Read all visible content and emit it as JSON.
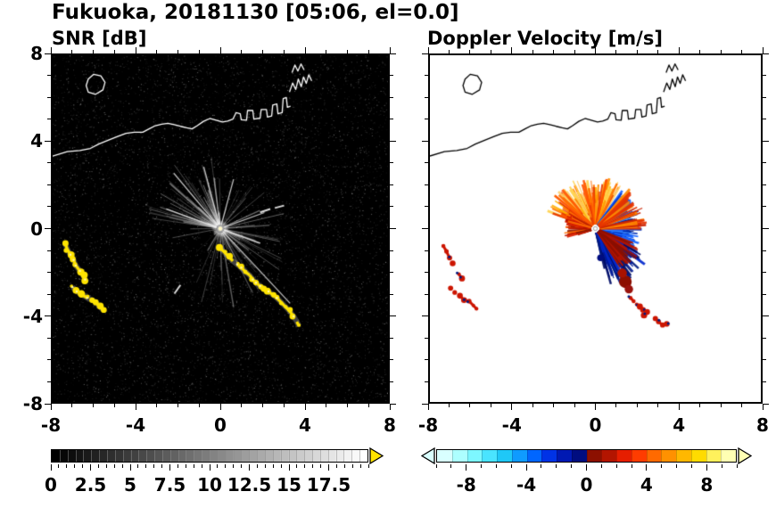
{
  "chart_data": {
    "type": "heatmap",
    "title": "Fukuoka, 20181130 [05:06, el=0.0]",
    "station": "Fukuoka",
    "date": "20181130",
    "time": "05:06",
    "elevation": "el=0.0",
    "panels": [
      {
        "label": "SNR [dB]",
        "background": "#000000",
        "units": "dB"
      },
      {
        "label": "Doppler Velocity [m/s]",
        "background": "#ffffff",
        "units": "m/s"
      }
    ],
    "axes": {
      "xlim": [
        -8,
        8
      ],
      "ylim": [
        -8,
        8
      ],
      "tick_values": [
        -8,
        -4,
        0,
        4,
        8
      ],
      "tick_labels": [
        "-8",
        "-4",
        "0",
        "4",
        "8"
      ],
      "minor_step": 1
    },
    "colorbars": [
      {
        "panel": "SNR [dB]",
        "min": 0,
        "max": 20,
        "tick_values": [
          0,
          2.5,
          5,
          7.5,
          10,
          12.5,
          15,
          17.5
        ],
        "tick_labels": [
          "0",
          "2.5",
          "5",
          "7.5",
          "10",
          "12.5",
          "15",
          "17.5"
        ],
        "minor_step": 0.5,
        "gradient_from": "#000000",
        "gradient_to": "#ffffff",
        "steps": 40,
        "over_arrow_color": "#ffe400"
      },
      {
        "panel": "Doppler Velocity [m/s]",
        "min": -10,
        "max": 10,
        "tick_values": [
          -8,
          -4,
          0,
          4,
          8
        ],
        "tick_labels": [
          "-8",
          "-4",
          "0",
          "4",
          "8"
        ],
        "minor_step": 1,
        "colors": [
          "#d9ffff",
          "#adffff",
          "#7df7ff",
          "#4ae4ff",
          "#1fc8f7",
          "#0f9bff",
          "#0066ff",
          "#0033e6",
          "#0019b3",
          "#000d80",
          "#8c1000",
          "#b31500",
          "#e61e00",
          "#ff3c00",
          "#ff6a00",
          "#ff9100",
          "#ffb800",
          "#ffdb00",
          "#fff15c",
          "#ffffb3"
        ],
        "under_arrow_color": "#d9ffff",
        "over_arrow_color": "#ffffb3"
      }
    ],
    "coastline": [
      {
        "closed": false,
        "pts": [
          [
            -8,
            3.35
          ],
          [
            -7.3,
            3.55
          ],
          [
            -6.7,
            3.6
          ],
          [
            -6.2,
            3.7
          ],
          [
            -5.8,
            3.9
          ],
          [
            -5.3,
            4.1
          ],
          [
            -4.9,
            4.25
          ],
          [
            -4.5,
            4.4
          ],
          [
            -4.1,
            4.45
          ],
          [
            -3.7,
            4.45
          ],
          [
            -3.4,
            4.6
          ],
          [
            -3.1,
            4.75
          ],
          [
            -2.8,
            4.82
          ],
          [
            -2.5,
            4.86
          ],
          [
            -2.2,
            4.8
          ],
          [
            -1.9,
            4.72
          ],
          [
            -1.6,
            4.65
          ],
          [
            -1.35,
            4.6
          ],
          [
            -1.1,
            4.75
          ],
          [
            -0.8,
            4.95
          ],
          [
            -0.5,
            5.08
          ],
          [
            -0.2,
            5.0
          ],
          [
            0.1,
            4.92
          ],
          [
            0.35,
            4.96
          ],
          [
            0.6,
            5.05
          ],
          [
            0.75,
            5.35
          ],
          [
            0.95,
            5.3
          ],
          [
            1.0,
            5.02
          ],
          [
            1.25,
            5.0
          ],
          [
            1.3,
            5.45
          ],
          [
            1.55,
            5.45
          ],
          [
            1.6,
            5.05
          ],
          [
            1.9,
            5.1
          ],
          [
            1.95,
            5.5
          ],
          [
            2.2,
            5.5
          ],
          [
            2.25,
            5.15
          ],
          [
            2.45,
            5.2
          ],
          [
            2.5,
            5.7
          ],
          [
            2.7,
            5.75
          ],
          [
            2.75,
            5.3
          ],
          [
            2.95,
            5.35
          ],
          [
            3.0,
            6.0
          ],
          [
            3.15,
            6.05
          ],
          [
            3.2,
            5.6
          ],
          [
            3.35,
            5.65
          ]
        ]
      },
      {
        "closed": true,
        "pts": [
          [
            -6.3,
            6.3
          ],
          [
            -5.95,
            6.2
          ],
          [
            -5.6,
            6.4
          ],
          [
            -5.5,
            6.75
          ],
          [
            -5.7,
            7.05
          ],
          [
            -6.05,
            7.12
          ],
          [
            -6.3,
            6.9
          ],
          [
            -6.4,
            6.6
          ]
        ]
      },
      {
        "closed": false,
        "pts": [
          [
            3.3,
            6.3
          ],
          [
            3.45,
            6.72
          ],
          [
            3.6,
            6.42
          ],
          [
            3.72,
            6.9
          ],
          [
            3.86,
            6.55
          ],
          [
            3.97,
            7.0
          ],
          [
            4.1,
            6.7
          ],
          [
            4.22,
            7.1
          ],
          [
            4.36,
            6.82
          ]
        ]
      },
      {
        "closed": false,
        "pts": [
          [
            3.42,
            7.2
          ],
          [
            3.56,
            7.55
          ],
          [
            3.7,
            7.27
          ],
          [
            3.85,
            7.6
          ],
          [
            4.0,
            7.32
          ]
        ]
      }
    ],
    "radar_center": [
      0,
      0
    ],
    "snr": {
      "echo_color": "#ffe400",
      "noise_dots": 7500,
      "streaks": 185,
      "long_streaks": [
        {
          "angle": -47,
          "len": 4.8
        },
        {
          "angle": 130,
          "len": 3.4
        },
        {
          "angle": 105,
          "len": 3.0
        },
        {
          "angle": 160,
          "len": 2.7
        },
        {
          "angle": 75,
          "len": 2.4
        },
        {
          "angle": 20,
          "len": 2.2
        },
        {
          "angle": -20,
          "len": 2.0
        }
      ],
      "dashes": [
        {
          "xy": [
            1.9,
            0.75
          ],
          "angle": 18,
          "len": 0.5
        },
        {
          "xy": [
            2.6,
            0.95
          ],
          "angle": 15,
          "len": 0.45
        },
        {
          "xy": [
            -1.9,
            -2.6
          ],
          "angle": -125,
          "len": 0.5
        }
      ],
      "chains": [
        {
          "pts": [
            [
              -7.4,
              -0.7
            ],
            [
              -7.3,
              -0.95
            ],
            [
              -7.15,
              -1.2
            ],
            [
              -7.0,
              -1.45
            ],
            [
              -6.9,
              -1.7
            ],
            [
              -6.7,
              -1.95
            ],
            [
              -6.55,
              -2.15
            ],
            [
              -6.45,
              -2.35
            ]
          ]
        },
        {
          "pts": [
            [
              -7.05,
              -2.7
            ],
            [
              -6.85,
              -2.9
            ],
            [
              -6.6,
              -3.05
            ],
            [
              -6.35,
              -3.2
            ],
            [
              -6.1,
              -3.3
            ],
            [
              -5.9,
              -3.45
            ],
            [
              -5.75,
              -3.6
            ],
            [
              -5.6,
              -3.75
            ]
          ]
        },
        {
          "pts": [
            [
              0.0,
              -0.9
            ],
            [
              0.2,
              -1.1
            ],
            [
              0.4,
              -1.3
            ],
            [
              0.6,
              -1.5
            ],
            [
              0.8,
              -1.65
            ],
            [
              1.0,
              -1.8
            ],
            [
              1.2,
              -2.0
            ],
            [
              1.4,
              -2.15
            ],
            [
              1.55,
              -2.35
            ],
            [
              1.7,
              -2.5
            ],
            [
              1.9,
              -2.65
            ],
            [
              2.1,
              -2.8
            ],
            [
              2.3,
              -2.9
            ],
            [
              2.5,
              -3.05
            ],
            [
              2.7,
              -3.2
            ],
            [
              2.9,
              -3.4
            ],
            [
              3.1,
              -3.6
            ],
            [
              3.3,
              -3.8
            ],
            [
              3.5,
              -4.05
            ],
            [
              3.65,
              -4.3
            ],
            [
              3.75,
              -4.5
            ]
          ]
        }
      ]
    },
    "doppler": {
      "hole_radius": 0.16,
      "fans": [
        {
          "a0": 55,
          "a1": 162,
          "rmin": 0.25,
          "rmax": 2.5,
          "n": 280,
          "colors": [
            "#ff9100",
            "#ff7300",
            "#ffb000",
            "#ffd24d",
            "#ff5500",
            "#e63900",
            "#ffcf70"
          ]
        },
        {
          "a0": 148,
          "a1": 200,
          "rmin": 0.3,
          "rmax": 1.5,
          "n": 80,
          "colors": [
            "#d91f00",
            "#b31300",
            "#ff6a00",
            "#8c1a00"
          ]
        },
        {
          "a0": -28,
          "a1": 55,
          "rmin": 0.25,
          "rmax": 2.2,
          "n": 280,
          "colors": [
            "#0047e6",
            "#002db3",
            "#1a66ff",
            "#001a80",
            "#3385ff",
            "#0033cc"
          ]
        },
        {
          "a0": -78,
          "a1": -28,
          "rmin": 0.3,
          "rmax": 2.9,
          "n": 170,
          "colors": [
            "#001a99",
            "#000d66",
            "#0026cc",
            "#001a80"
          ]
        },
        {
          "a0": 0,
          "a1": 52,
          "rmin": 1.9,
          "rmax": 2.5,
          "n": 40,
          "colors": [
            "#cc2200",
            "#e63300",
            "#ff8800"
          ]
        },
        {
          "a0": -60,
          "a1": -20,
          "rmin": 1.6,
          "rmax": 2.4,
          "n": 30,
          "colors": [
            "#8c0f00",
            "#b31300"
          ]
        }
      ],
      "blobs": [
        {
          "xy": [
            1.45,
            -2.45
          ],
          "r": 0.3,
          "color": "#8c0f00"
        },
        {
          "xy": [
            1.3,
            -2.05
          ],
          "r": 0.22,
          "color": "#a81200"
        },
        {
          "xy": [
            1.62,
            -2.8
          ],
          "r": 0.2,
          "color": "#99130d"
        },
        {
          "xy": [
            0.25,
            -1.35
          ],
          "r": 0.16,
          "color": "#000d80"
        }
      ],
      "patches": [
        {
          "main": "#cc1500",
          "fleck": "#001a80",
          "pts": [
            [
              -7.35,
              -0.8
            ],
            [
              -7.2,
              -1.05
            ],
            [
              -7.05,
              -1.35
            ],
            [
              -6.9,
              -1.6
            ]
          ]
        },
        {
          "main": "#cc1500",
          "fleck": "#001a80",
          "pts": [
            [
              -6.6,
              -2.1
            ],
            [
              -6.45,
              -2.3
            ]
          ]
        },
        {
          "main": "#cc1500",
          "fleck": "#001a80",
          "pts": [
            [
              -7.0,
              -2.75
            ],
            [
              -6.8,
              -2.95
            ],
            [
              -6.55,
              -3.1
            ],
            [
              -6.35,
              -3.3
            ],
            [
              -6.1,
              -3.35
            ],
            [
              -5.9,
              -3.55
            ],
            [
              -5.75,
              -3.7
            ]
          ]
        },
        {
          "main": "#cc1500",
          "fleck": "#001a80",
          "pts": [
            [
              1.7,
              -3.2
            ],
            [
              1.85,
              -3.35
            ],
            [
              2.0,
              -3.5
            ],
            [
              2.15,
              -3.6
            ],
            [
              2.3,
              -3.75
            ],
            [
              2.5,
              -3.85
            ],
            [
              2.35,
              -4.0
            ]
          ]
        },
        {
          "main": "#cc1500",
          "fleck": "#001a80",
          "pts": [
            [
              2.9,
              -4.15
            ],
            [
              3.05,
              -4.3
            ],
            [
              3.25,
              -4.45
            ],
            [
              3.45,
              -4.4
            ]
          ]
        }
      ]
    }
  }
}
